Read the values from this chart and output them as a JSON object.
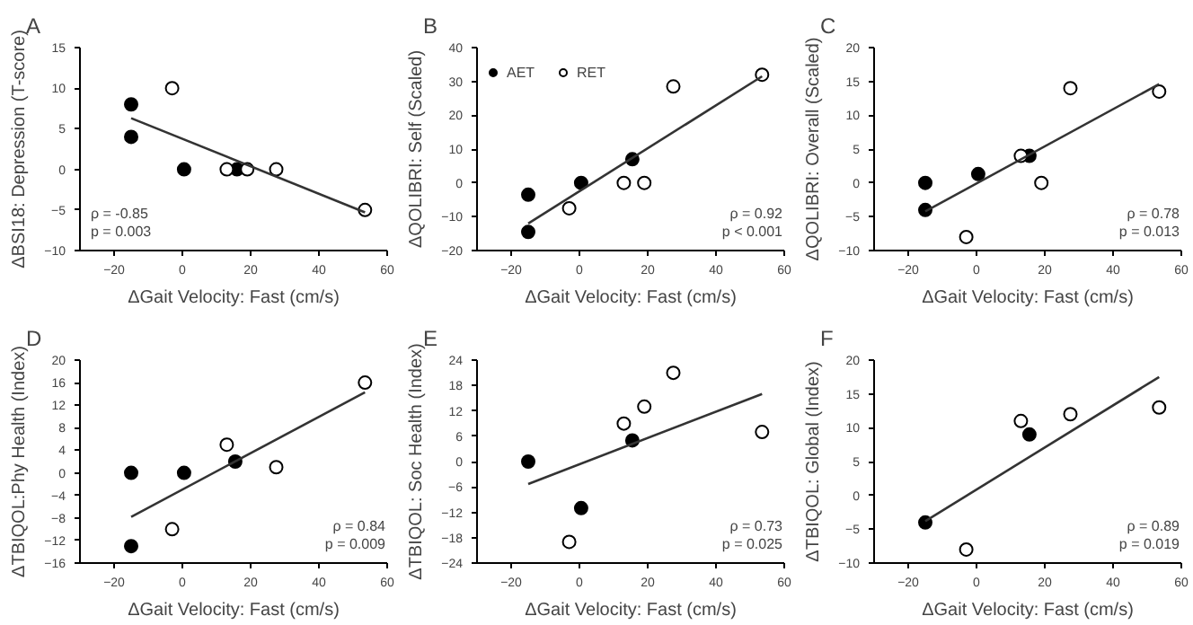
{
  "chart_data": [
    {
      "type": "scatter",
      "title": "A",
      "xlabel": "ΔGait Velocity: Fast (cm/s)",
      "ylabel": "ΔBSI18: Depression (T-score)",
      "xlim": [
        -30,
        60
      ],
      "xticks": [
        -20,
        0,
        20,
        40,
        60
      ],
      "ylim": [
        -10,
        15
      ],
      "yticks": [
        -10,
        -5,
        0,
        5,
        10,
        15
      ],
      "marker": "circle",
      "legend": false,
      "grid": false,
      "annotations": [
        "ρ = -0.85",
        "p = 0.003"
      ],
      "series": [
        {
          "color": "#000000",
          "x": [
            -15,
            -15,
            0.5,
            16
          ],
          "values": [
            8,
            4,
            0,
            0
          ]
        },
        {
          "color": "#ffffff",
          "x": [
            -3,
            13,
            19,
            27.5,
            53.5
          ],
          "values": [
            10,
            0,
            0,
            0,
            -5
          ]
        },
        {
          "type": "line",
          "marker": "none",
          "color": "#333333",
          "x": [
            -15,
            53.5
          ],
          "values": [
            6.3,
            -5.3
          ]
        }
      ]
    },
    {
      "type": "scatter",
      "title": "B",
      "xlabel": "ΔGait Velocity: Fast (cm/s)",
      "ylabel": "ΔQOLIBRI: Self (Scaled)",
      "xlim": [
        -30,
        60
      ],
      "xticks": [
        -20,
        0,
        20,
        40,
        60
      ],
      "ylim": [
        -20,
        40
      ],
      "yticks": [
        -20,
        -10,
        0,
        10,
        20,
        30,
        40
      ],
      "marker": "circle",
      "legend": "top left",
      "grid": false,
      "annotations": [
        "ρ = 0.92",
        "p < 0.001"
      ],
      "series": [
        {
          "name": "AET",
          "color": "#000000",
          "x": [
            -15,
            -15,
            0.5,
            15.5
          ],
          "values": [
            -3.5,
            -14.5,
            0,
            7
          ]
        },
        {
          "name": "RET",
          "color": "#ffffff",
          "x": [
            -3,
            13,
            19,
            27.5,
            53.5
          ],
          "values": [
            -7.5,
            0,
            0,
            28.5,
            32
          ]
        },
        {
          "type": "line",
          "marker": "none",
          "color": "#333333",
          "x": [
            -15,
            53.5
          ],
          "values": [
            -12,
            31.5
          ]
        }
      ]
    },
    {
      "type": "scatter",
      "title": "C",
      "xlabel": "ΔGait Velocity: Fast (cm/s)",
      "ylabel": "ΔQOLIBRI: Overall (Scaled)",
      "xlim": [
        -30,
        60
      ],
      "xticks": [
        -20,
        0,
        20,
        40,
        60
      ],
      "ylim": [
        -10,
        20
      ],
      "yticks": [
        -10,
        -5,
        0,
        5,
        10,
        15,
        20
      ],
      "marker": "circle",
      "legend": false,
      "grid": false,
      "annotations": [
        "ρ = 0.78",
        "p = 0.013"
      ],
      "series": [
        {
          "color": "#000000",
          "x": [
            -15,
            -15,
            0.5,
            15.5
          ],
          "values": [
            0,
            -4,
            1.3,
            4
          ]
        },
        {
          "color": "#ffffff",
          "x": [
            -3,
            13,
            19,
            27.5,
            53.5
          ],
          "values": [
            -8,
            4,
            0,
            14,
            13.5
          ]
        },
        {
          "type": "line",
          "marker": "none",
          "color": "#333333",
          "x": [
            -15,
            53.5
          ],
          "values": [
            -4.2,
            14.6
          ]
        }
      ]
    },
    {
      "type": "scatter",
      "title": "D",
      "xlabel": "ΔGait Velocity: Fast (cm/s)",
      "ylabel": "ΔTBIQOL:Phy Health (Index)",
      "xlim": [
        -30,
        60
      ],
      "xticks": [
        -20,
        0,
        20,
        40,
        60
      ],
      "ylim": [
        -16,
        20
      ],
      "yticks": [
        -16,
        -12,
        -8,
        -4,
        0,
        4,
        8,
        12,
        16,
        20
      ],
      "marker": "circle",
      "legend": false,
      "grid": false,
      "annotations": [
        "ρ = 0.84",
        "p = 0.009"
      ],
      "series": [
        {
          "color": "#000000",
          "x": [
            -15,
            -15,
            0.5,
            15.5
          ],
          "values": [
            0,
            -13,
            0,
            2
          ]
        },
        {
          "color": "#ffffff",
          "x": [
            -3,
            13,
            27.5,
            53.5
          ],
          "values": [
            -10,
            5,
            1,
            16
          ]
        },
        {
          "type": "line",
          "marker": "none",
          "color": "#333333",
          "x": [
            -15,
            53.5
          ],
          "values": [
            -7.8,
            14.3
          ]
        }
      ]
    },
    {
      "type": "scatter",
      "title": "E",
      "xlabel": "ΔGait Velocity: Fast (cm/s)",
      "ylabel": "ΔTBIQOL: Soc Health (Index)",
      "xlim": [
        -30,
        60
      ],
      "xticks": [
        -20,
        0,
        20,
        40,
        60
      ],
      "ylim": [
        -24,
        24
      ],
      "yticks": [
        -24,
        -18,
        -12,
        -6,
        0,
        6,
        12,
        18,
        24
      ],
      "marker": "circle",
      "legend": false,
      "grid": false,
      "annotations": [
        "ρ = 0.73",
        "p = 0.025"
      ],
      "series": [
        {
          "color": "#000000",
          "x": [
            -15,
            0.5,
            15.5
          ],
          "values": [
            0,
            -11,
            5
          ]
        },
        {
          "color": "#ffffff",
          "x": [
            -3,
            13,
            19,
            27.5,
            53.5
          ],
          "values": [
            -19,
            9,
            13,
            21,
            7
          ]
        },
        {
          "type": "line",
          "marker": "none",
          "color": "#333333",
          "x": [
            -15,
            53.5
          ],
          "values": [
            -5.3,
            16
          ]
        }
      ]
    },
    {
      "type": "scatter",
      "title": "F",
      "xlabel": "ΔGait Velocity: Fast (cm/s)",
      "ylabel": "ΔTBIQOL: Global (Index)",
      "xlim": [
        -30,
        60
      ],
      "xticks": [
        -20,
        0,
        20,
        40,
        60
      ],
      "ylim": [
        -10,
        20
      ],
      "yticks": [
        -10,
        -5,
        0,
        5,
        10,
        15,
        20
      ],
      "marker": "circle",
      "legend": false,
      "grid": false,
      "annotations": [
        "ρ = 0.89",
        "p = 0.019"
      ],
      "series": [
        {
          "color": "#000000",
          "x": [
            -15,
            15.5
          ],
          "values": [
            -4,
            9
          ]
        },
        {
          "color": "#ffffff",
          "x": [
            -3,
            13,
            27.5,
            53.5
          ],
          "values": [
            -8,
            11,
            12,
            13
          ]
        },
        {
          "type": "line",
          "marker": "none",
          "color": "#333333",
          "x": [
            -15,
            53.5
          ],
          "values": [
            -3.8,
            17.5
          ]
        }
      ]
    }
  ]
}
